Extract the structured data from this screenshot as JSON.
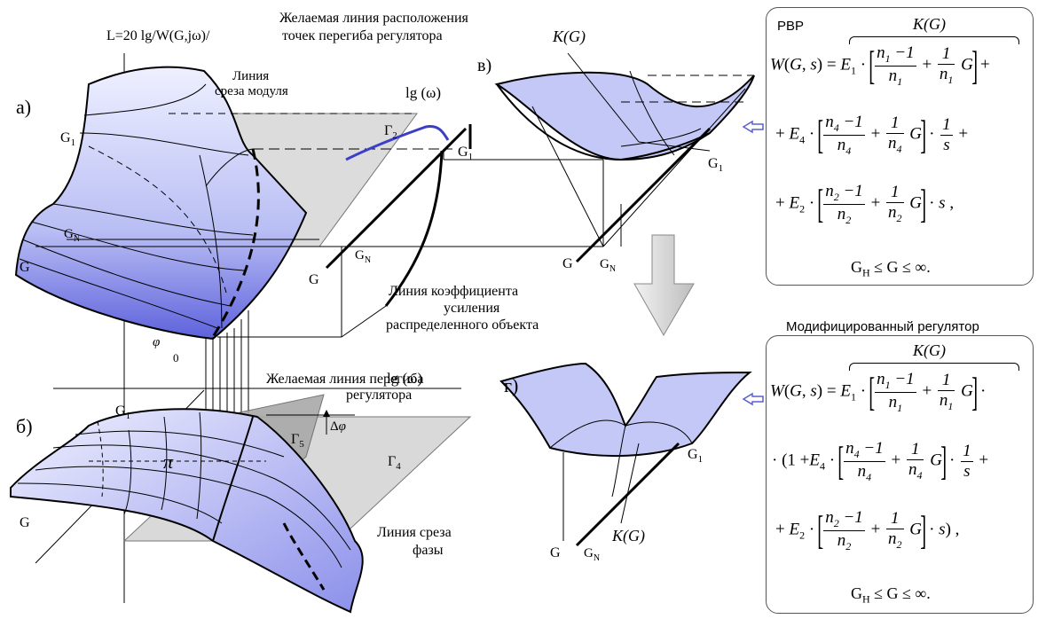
{
  "labels": {
    "L_axis": "L=20 lg/W(G,jω)/",
    "desired_line_1": "Желаемая линия расположения",
    "desired_line_2": "точек перегиба регулятора",
    "cutoff_mod_1": "Линия",
    "cutoff_mod_2": "среза модуля",
    "panel_a": "а)",
    "panel_b": "б)",
    "panel_v": "в)",
    "panel_g": "г)",
    "lg_omega_top": "lg (ω)",
    "lg_omega_bottom": "lg (ω)",
    "gamma2": "Г",
    "gamma2_sub": "2",
    "gamma5": "Г",
    "gamma5_sub": "5",
    "gamma4": "Г",
    "gamma4_sub": "4",
    "G1": "G",
    "G1_sub": "1",
    "GN": "G",
    "GN_sub": "N",
    "G": "G",
    "gain_line_1": "Линия коэффициента",
    "gain_line_2": "усиления",
    "gain_line_3": "распределенного объекта",
    "phi": "φ",
    "zero": "0",
    "desired_inflect_1": "Желаемая линия перегиба",
    "desired_inflect_2": "регулятора",
    "delta_phi": "Δ φ",
    "pi": "π",
    "phase_cut_1": "Линия среза",
    "phase_cut_2": "фазы",
    "KG": "K(G)"
  },
  "box1": {
    "title": "РВР",
    "brace_label": "K(G)",
    "cond": "≤ G ≤ ∞."
  },
  "box2": {
    "title": "Модифицированный  регулятор",
    "brace_label": "K(G)",
    "cond": "≤ G ≤ ∞."
  },
  "colors": {
    "surface_light": "#d8dcff",
    "surface_mid": "#b8bdf2",
    "surface_dark": "#6c6fe0",
    "plane_gray": "#d9d9d9",
    "plane_dark": "#a9a9a9",
    "accent_blue": "#3b3fc8",
    "arrow_fill": "#d3d3d3"
  }
}
